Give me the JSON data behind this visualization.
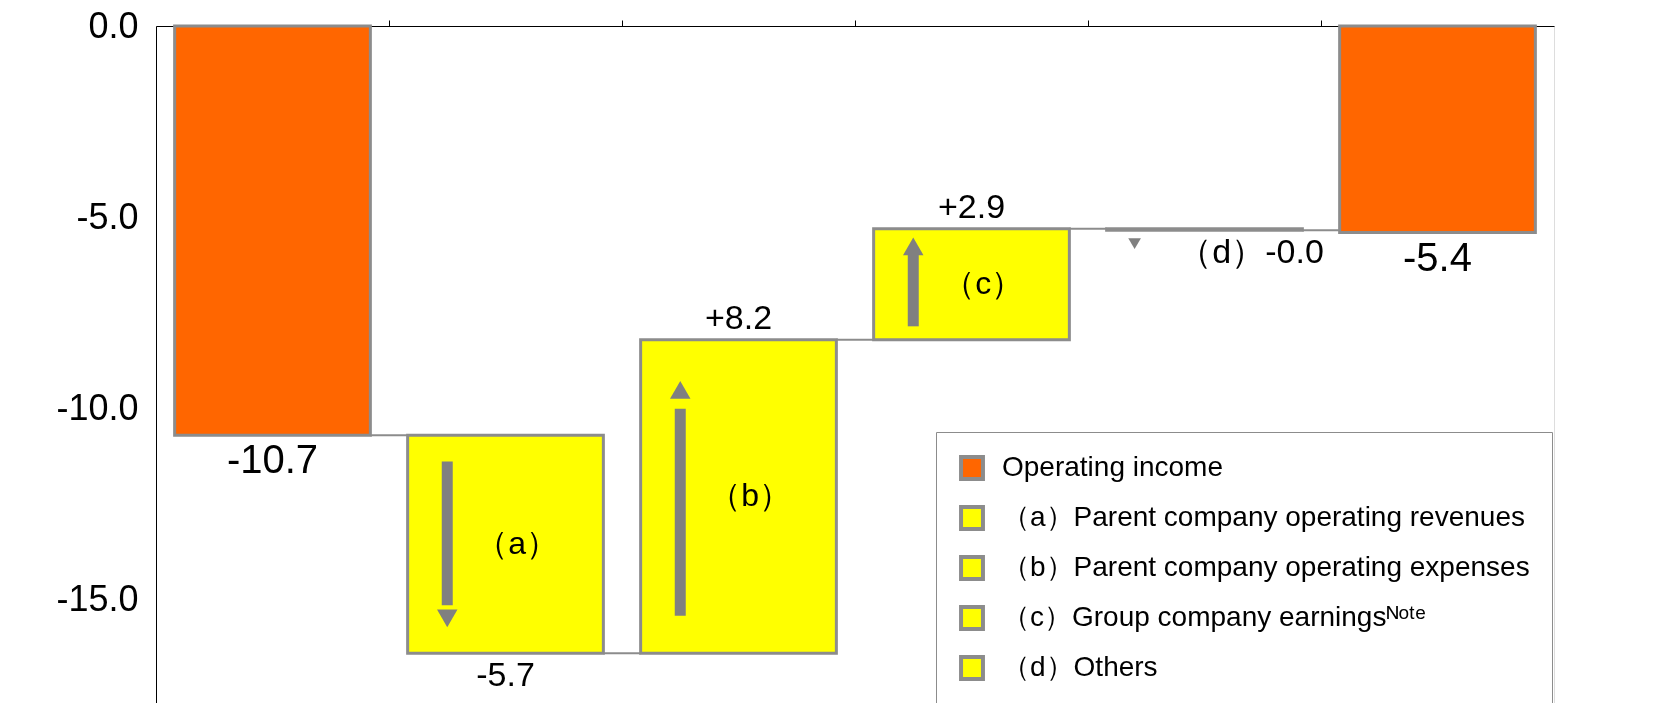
{
  "chart_data": {
    "type": "bar",
    "categories": [
      null,
      "（a）",
      "（b）",
      "（c）",
      null,
      null
    ],
    "series": [
      {
        "name": "Operating income",
        "color": "#ff6600",
        "values": [
          -10.7,
          null,
          null,
          null,
          null,
          -5.4
        ],
        "base": [
          0,
          null,
          null,
          null,
          null,
          0
        ],
        "value_labels": [
          "-10.7",
          null,
          null,
          null,
          null,
          "-5.4"
        ]
      },
      {
        "name": "（a）Parent company operating revenues",
        "color": "#ffff00",
        "values": [
          null,
          -5.7,
          null,
          null,
          null,
          null
        ],
        "base": [
          null,
          -10.7,
          null,
          null,
          null,
          null
        ],
        "value_labels": [
          null,
          "-5.7",
          null,
          null,
          null,
          null
        ]
      },
      {
        "name": "（b）Parent company operating expenses",
        "color": "#ffff00",
        "values": [
          null,
          null,
          8.2,
          null,
          null,
          null
        ],
        "base": [
          null,
          null,
          -16.4,
          null,
          null,
          null
        ],
        "value_labels": [
          null,
          null,
          "+8.2",
          null,
          null,
          null
        ]
      },
      {
        "name": "（c）Group company earningsᴺᵒᵗᵉ",
        "color": "#ffff00",
        "values": [
          null,
          null,
          null,
          2.9,
          null,
          null
        ],
        "base": [
          null,
          null,
          null,
          -8.2,
          null,
          null
        ],
        "value_labels": [
          null,
          null,
          null,
          "+2.9",
          null,
          null
        ]
      },
      {
        "name": "（d）Others",
        "color": "#ffff00",
        "values": [
          null,
          null,
          null,
          null,
          -0.04,
          null
        ],
        "base": [
          null,
          null,
          null,
          null,
          -5.3,
          null
        ],
        "value_labels": [
          null,
          null,
          null,
          null,
          "（d）-0.0",
          null
        ]
      }
    ],
    "ylim": [
      -17.7,
      0
    ],
    "yticks": [
      {
        "value": 0,
        "label": "0.0"
      },
      {
        "value": -5,
        "label": "-5.0"
      },
      {
        "value": -10,
        "label": "-10.0"
      },
      {
        "value": -15,
        "label": "-15.0"
      }
    ],
    "tick_labels": "y",
    "grid": false,
    "legend": "bottom right"
  }
}
